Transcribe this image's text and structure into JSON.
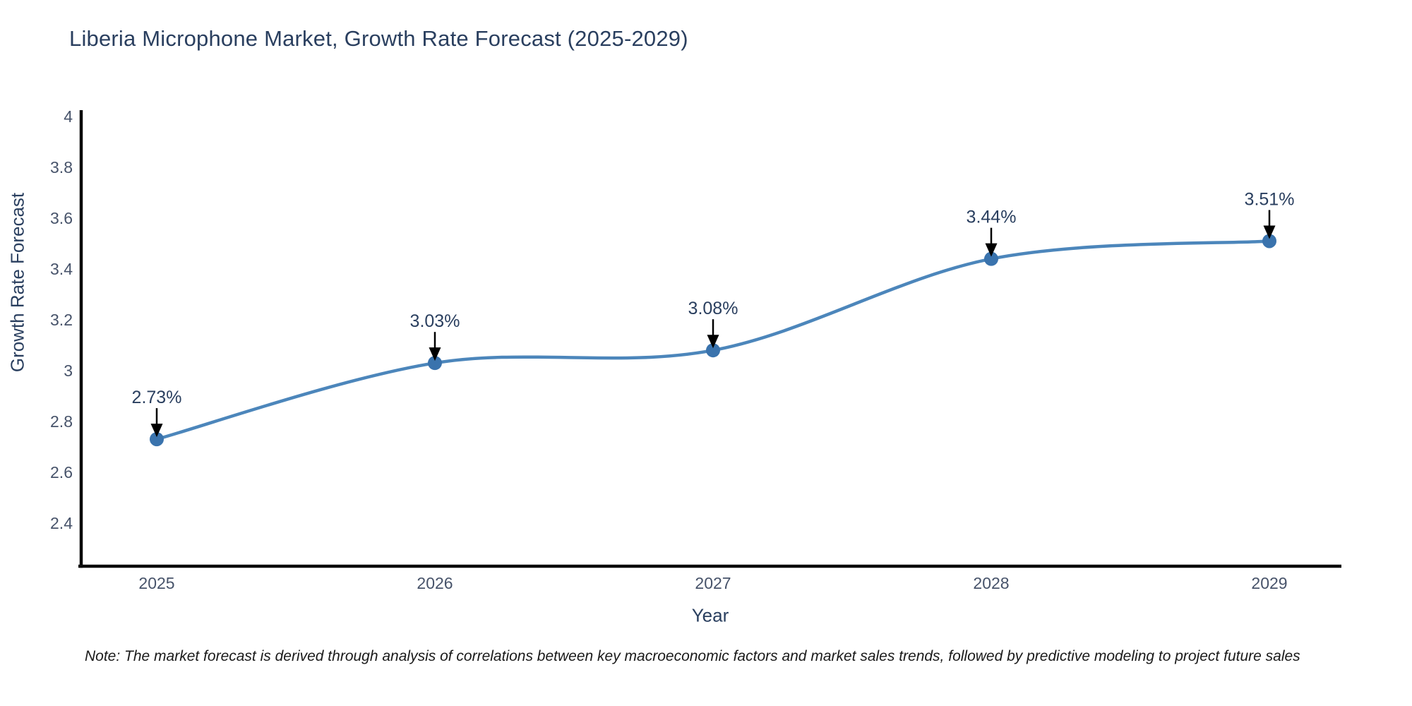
{
  "title": "Liberia Microphone Market, Growth Rate Forecast (2025-2029)",
  "note": "Note: The market forecast is derived through analysis of correlations between key macroeconomic factors and market sales trends, followed by predictive modeling to project future sales",
  "chart_data": {
    "type": "line",
    "title": "Liberia Microphone Market, Growth Rate Forecast (2025-2029)",
    "x": [
      "2025",
      "2026",
      "2027",
      "2028",
      "2029"
    ],
    "values": [
      2.73,
      3.03,
      3.08,
      3.44,
      3.51
    ],
    "point_labels": [
      "2.73%",
      "3.03%",
      "3.08%",
      "3.44%",
      "3.51%"
    ],
    "xlabel": "Year",
    "ylabel": "Growth Rate Forecast",
    "ytick_values": [
      4,
      3.8,
      3.6,
      3.4,
      3.2,
      3,
      2.8,
      2.6,
      2.4
    ],
    "ytick_labels": [
      "4",
      "3.8",
      "3.6",
      "3.4",
      "3.2",
      "3",
      "2.8",
      "2.6",
      "2.4"
    ],
    "ylim": [
      2.23,
      4.02
    ],
    "grid": false,
    "legend": "none",
    "line_shape": "spline",
    "colors": {
      "line": "#4c86bb",
      "marker": "#3a73ad",
      "axis": "#0b0b0b",
      "tick_text": "#47536a",
      "annotation_text": "#2a3f5f",
      "arrow": "#000000",
      "title_text": "#2a3f5f"
    }
  }
}
